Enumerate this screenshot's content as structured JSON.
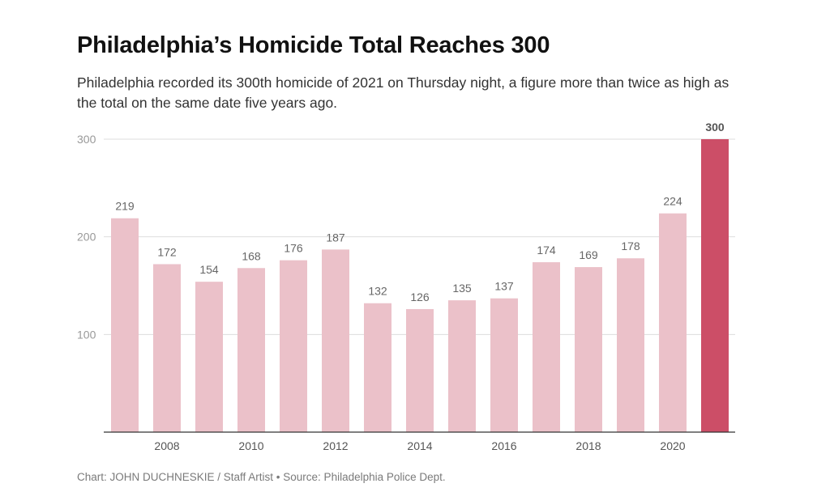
{
  "title": "Philadelphia’s Homicide Total Reaches 300",
  "subtitle": "Philadelphia recorded its 300th homicide of 2021 on Thursday night, a figure more than twice as high as the total on the same date five years ago.",
  "credit": "Chart: JOHN DUCHNESKIE / Staff Artist • Source: Philadelphia Police Dept.",
  "colors": {
    "bar": "#ebc1c9",
    "highlight": "#cc4e67",
    "label": "#666666",
    "highlight_label": "#555555",
    "axis_tick": "#999999",
    "gridline": "#dddddd"
  },
  "chart_data": {
    "type": "bar",
    "categories": [
      "2007",
      "2008",
      "2009",
      "2010",
      "2011",
      "2012",
      "2013",
      "2014",
      "2015",
      "2016",
      "2017",
      "2018",
      "2019",
      "2020",
      "2021"
    ],
    "x_tick_labels": [
      "2008",
      "2010",
      "2012",
      "2014",
      "2016",
      "2018",
      "2020"
    ],
    "values": [
      219,
      172,
      154,
      168,
      176,
      187,
      132,
      126,
      135,
      137,
      174,
      169,
      178,
      224,
      300
    ],
    "highlight_index": 14,
    "y_ticks": [
      100,
      200,
      300
    ],
    "ylim": [
      0,
      300
    ],
    "grid": true,
    "title": "Philadelphia’s Homicide Total Reaches 300",
    "xlabel": "",
    "ylabel": ""
  }
}
